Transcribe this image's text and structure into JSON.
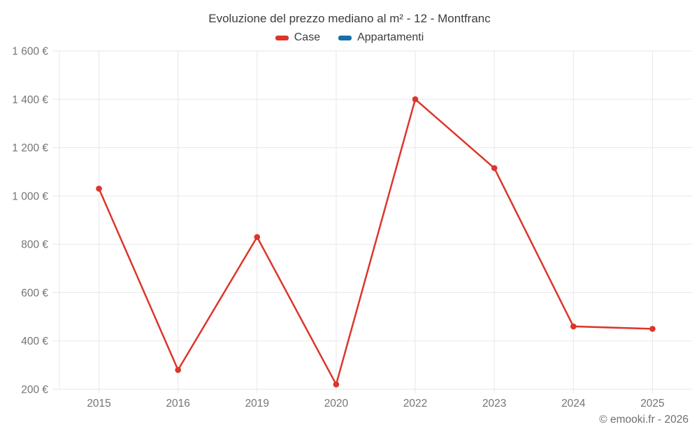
{
  "chart_data": {
    "type": "line",
    "title": "Evoluzione del prezzo mediano al m² - 12 - Montfranc",
    "categories": [
      "2015",
      "2016",
      "2019",
      "2020",
      "2022",
      "2023",
      "2024",
      "2025"
    ],
    "series": [
      {
        "name": "Case",
        "color": "#dc352c",
        "values": [
          1030,
          280,
          830,
          220,
          1400,
          1115,
          460,
          450
        ]
      },
      {
        "name": "Appartamenti",
        "color": "#1371a3",
        "values": []
      }
    ],
    "xlabel": "",
    "ylabel": "",
    "ylim": [
      200,
      1600
    ],
    "y_tick_step": 200,
    "y_tick_suffix": " €",
    "grid": true,
    "legend_position": "top",
    "footer": "© emooki.fr - 2026"
  },
  "style_colors": {
    "grid": "#e7e7e7",
    "axis_text": "#757575",
    "title_text": "#3c3c3c",
    "footer_text": "#6f6f6f",
    "background": "#ffffff"
  }
}
